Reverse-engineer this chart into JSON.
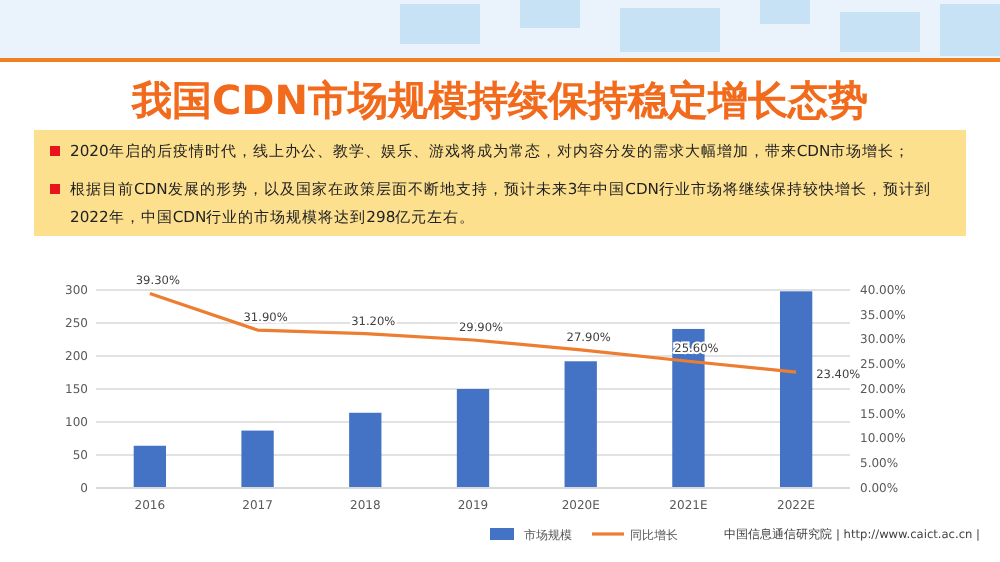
{
  "chart_data": {
    "type": "bar",
    "title": "我国CDN市场规模持续保持稳定增长态势",
    "annotations": [
      "2020年启的后疫情时代，线上办公、教学、娱乐、游戏将成为常态，对内容分发的需求大幅增加，带来CDN市场增长；",
      "根据目前CDN发展的形势，以及国家在政策层面不断地支持，预计未来3年中国CDN行业市场将继续保持较快增长，预计到2022年，中国CDN行业的市场规模将达到298亿元左右。",
      "中国信息通信研究院  |  http://www.caict.ac.cn  |"
    ],
    "categories": [
      "2016",
      "2017",
      "2018",
      "2019",
      "2020E",
      "2021E",
      "2022E"
    ],
    "series": [
      {
        "name": "市场规模",
        "color": "#4472c4",
        "values": [
          64,
          87,
          114,
          150,
          192,
          241,
          298
        ]
      },
      {
        "name": "同比增长",
        "type": "line",
        "axis": "y2",
        "color": "#ed7d31",
        "values": [
          39.3,
          31.9,
          31.2,
          29.9,
          27.9,
          25.6,
          23.4
        ],
        "value_labels": [
          "39.30%",
          "31.90%",
          "31.20%",
          "29.90%",
          "27.90%",
          "25.60%",
          "23.40%"
        ]
      }
    ],
    "ylim": [
      0,
      300
    ],
    "yticks": [
      0,
      50,
      100,
      150,
      200,
      250,
      300
    ],
    "y2lim": [
      0,
      40
    ],
    "y2ticks": [
      {
        "value": 0,
        "label": "0.00%"
      },
      {
        "value": 5,
        "label": "5.00%"
      },
      {
        "value": 10,
        "label": "10.00%"
      },
      {
        "value": 15,
        "label": "15.00%"
      },
      {
        "value": 20,
        "label": "20.00%"
      },
      {
        "value": 25,
        "label": "25.00%"
      },
      {
        "value": 30,
        "label": "30.00%"
      },
      {
        "value": 35,
        "label": "35.00%"
      },
      {
        "value": 40,
        "label": "40.00%"
      }
    ],
    "grid": "y",
    "legend": "bottom",
    "marker": "none"
  }
}
